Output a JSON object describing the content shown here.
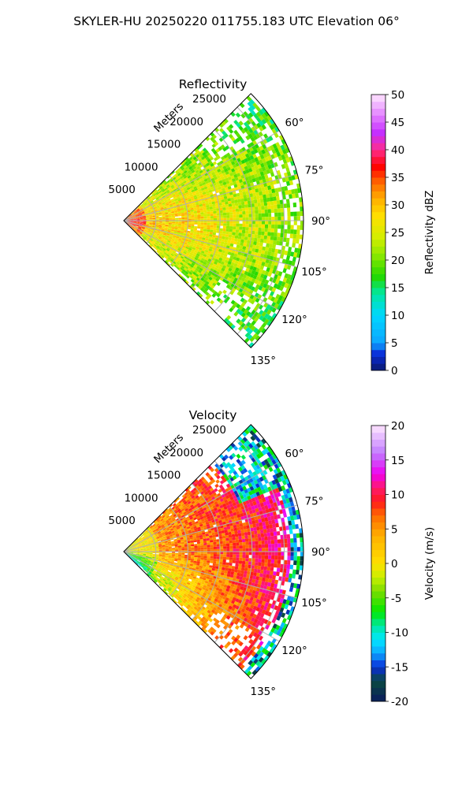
{
  "figure": {
    "suptitle": "SKYLER-HU  20250220  011755.183 UTC Elevation 06°"
  },
  "chart_data": [
    {
      "type": "heatmap",
      "title": "Reflectivity",
      "projection": "polar-sector",
      "angle_ticks": [
        "60°",
        "75°",
        "90°",
        "105°",
        "120°",
        "135°"
      ],
      "angle_range_deg": [
        45,
        135
      ],
      "range_label": "Meters",
      "range_ticks": [
        "5000",
        "10000",
        "15000",
        "20000",
        "25000"
      ],
      "range_max": 28000,
      "colorbar": {
        "label": "Reflectivity dBZ",
        "range": [
          0,
          50
        ],
        "ticks": [
          "0",
          "5",
          "10",
          "15",
          "20",
          "25",
          "30",
          "35",
          "40",
          "45",
          "50"
        ],
        "stops": [
          [
            0,
            "#0b1b6e"
          ],
          [
            3,
            "#0a2bd8"
          ],
          [
            5,
            "#0ea5ff"
          ],
          [
            10,
            "#00d7ff"
          ],
          [
            14,
            "#00e8a0"
          ],
          [
            17,
            "#22d800"
          ],
          [
            21,
            "#8ee800"
          ],
          [
            24,
            "#d2ee00"
          ],
          [
            28,
            "#ffe000"
          ],
          [
            31,
            "#ffb000"
          ],
          [
            34,
            "#ff6a00"
          ],
          [
            37,
            "#ff0000"
          ],
          [
            40,
            "#ff2c8c"
          ],
          [
            43,
            "#c42cff"
          ],
          [
            46,
            "#e07aff"
          ],
          [
            50,
            "#ffe6ff"
          ]
        ]
      },
      "field": "reflectivity"
    },
    {
      "type": "heatmap",
      "title": "Velocity",
      "projection": "polar-sector",
      "angle_ticks": [
        "60°",
        "75°",
        "90°",
        "105°",
        "120°",
        "135°"
      ],
      "angle_range_deg": [
        45,
        135
      ],
      "range_label": "Meters",
      "range_ticks": [
        "5000",
        "10000",
        "15000",
        "20000",
        "25000"
      ],
      "range_max": 28000,
      "colorbar": {
        "label": "Velocity (m/s)",
        "range": [
          -20,
          20
        ],
        "ticks": [
          "-20",
          "-15",
          "-10",
          "-5",
          "0",
          "5",
          "10",
          "15",
          "20"
        ],
        "stops": [
          [
            -20,
            "#0b1b5e"
          ],
          [
            -17,
            "#0a4a40"
          ],
          [
            -15,
            "#0a2bd8"
          ],
          [
            -13,
            "#0ea5ff"
          ],
          [
            -11,
            "#00e8ff"
          ],
          [
            -9,
            "#00e8a0"
          ],
          [
            -7,
            "#00e800"
          ],
          [
            -4,
            "#7cdc00"
          ],
          [
            -2,
            "#c8f000"
          ],
          [
            0,
            "#ffe000"
          ],
          [
            4,
            "#ffb000"
          ],
          [
            7,
            "#ff6a00"
          ],
          [
            9,
            "#ff1a1a"
          ],
          [
            11,
            "#ff1a6c"
          ],
          [
            13,
            "#f000f0"
          ],
          [
            16,
            "#c07aff"
          ],
          [
            20,
            "#ffe6ff"
          ]
        ]
      },
      "field": "velocity"
    }
  ]
}
